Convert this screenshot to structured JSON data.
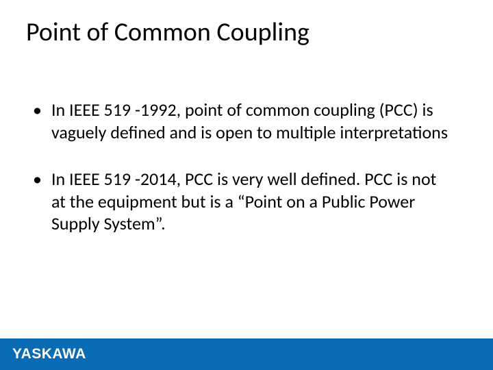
{
  "slide": {
    "title": "Point of Common Coupling",
    "title_color": "#000000",
    "title_fontsize": 38,
    "background_color": "#ffffff",
    "bullets": [
      {
        "marker": "•",
        "text": "In IEEE 519 -1992, point of common coupling (PCC) is vaguely defined and is open to multiple interpretations"
      },
      {
        "marker": "•",
        "text": "In IEEE 519 -2014, PCC is very well defined. PCC is not at the equipment but is a “Point on a Public Power Supply System”."
      }
    ],
    "body_fontsize": 26,
    "body_color": "#000000"
  },
  "footer": {
    "bar_color": "#0a6bb5",
    "logo_text": "YASKAWA",
    "logo_color": "#ffffff"
  }
}
